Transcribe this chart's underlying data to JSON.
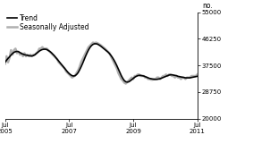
{
  "ylabel": "no.",
  "ylim": [
    20000,
    55000
  ],
  "yticks": [
    20000,
    28750,
    37500,
    46250,
    55000
  ],
  "ytick_labels": [
    "20000",
    "28750",
    "37500",
    "46250",
    "55000"
  ],
  "xtick_positions": [
    0,
    24,
    48,
    72
  ],
  "xtick_labels": [
    "Jul\n2005",
    "Jul\n2007",
    "Jul\n2009",
    "Jul\n2011"
  ],
  "legend_entries": [
    "Trend",
    "Seasonally Adjusted"
  ],
  "trend_color": "#000000",
  "seasonal_color": "#b0b0b0",
  "background_color": "#ffffff",
  "trend_linewidth": 1.2,
  "seasonal_linewidth": 1.8,
  "trend_data": [
    38500,
    39200,
    39800,
    40300,
    40900,
    41400,
    41800,
    42000,
    42100,
    42000,
    41700,
    41400,
    41200,
    41000,
    40900,
    40800,
    40700,
    40600,
    40600,
    40700,
    41000,
    41400,
    41800,
    42200,
    42500,
    42700,
    42800,
    42800,
    42700,
    42400,
    42100,
    41700,
    41200,
    40700,
    40100,
    39500,
    38900,
    38300,
    37700,
    37100,
    36500,
    35900,
    35300,
    34800,
    34400,
    34100,
    34000,
    34100,
    34500,
    35100,
    36000,
    37000,
    38100,
    39300,
    40500,
    41600,
    42600,
    43400,
    44000,
    44400,
    44600,
    44600,
    44500,
    44200,
    43900,
    43500,
    43100,
    42700,
    42300,
    41900,
    41400,
    40800,
    40100,
    39300,
    38400,
    37400,
    36300,
    35200,
    34100,
    33200,
    32500,
    32100,
    32000,
    32100,
    32400,
    32800,
    33200,
    33600,
    33900,
    34100,
    34200,
    34200,
    34100,
    34000,
    33800,
    33600,
    33400,
    33200,
    33100,
    33000,
    32900,
    32900,
    32900,
    33000,
    33100,
    33300,
    33500,
    33700,
    33900,
    34100,
    34300,
    34400,
    34400,
    34300,
    34200,
    34100,
    33900,
    33800,
    33700,
    33600,
    33500,
    33400,
    33400,
    33400,
    33400,
    33500,
    33600,
    33700,
    33800,
    33900
  ],
  "seasonal_data": [
    38000,
    40500,
    38500,
    40000,
    42500,
    41000,
    42500,
    43000,
    41500,
    42000,
    41000,
    41500,
    40500,
    41500,
    40500,
    41000,
    40500,
    41000,
    40500,
    41000,
    41000,
    41500,
    42000,
    43000,
    43000,
    43500,
    43000,
    43000,
    43000,
    42500,
    42000,
    41500,
    41000,
    40500,
    40000,
    39500,
    38500,
    38000,
    37500,
    37000,
    36500,
    35500,
    35000,
    34500,
    34000,
    33500,
    33800,
    34200,
    35000,
    35800,
    37000,
    38500,
    39500,
    40500,
    41500,
    42500,
    43500,
    44000,
    44500,
    45000,
    44800,
    45000,
    44800,
    44500,
    44200,
    43800,
    43400,
    43000,
    42500,
    42000,
    41500,
    40500,
    39500,
    38500,
    37500,
    36500,
    35000,
    34000,
    33000,
    32500,
    31800,
    31500,
    32000,
    32500,
    33000,
    33500,
    33000,
    34000,
    34000,
    34500,
    34500,
    34000,
    34000,
    34000,
    33500,
    33500,
    33000,
    33000,
    32800,
    32800,
    33000,
    33000,
    33500,
    33500,
    33000,
    33500,
    34000,
    34000,
    34500,
    34000,
    34500,
    34500,
    34000,
    34000,
    33500,
    34000,
    33500,
    33500,
    33000,
    33500,
    33500,
    33000,
    33500,
    33500,
    33500,
    34000,
    34000,
    34000,
    34000,
    34500
  ]
}
